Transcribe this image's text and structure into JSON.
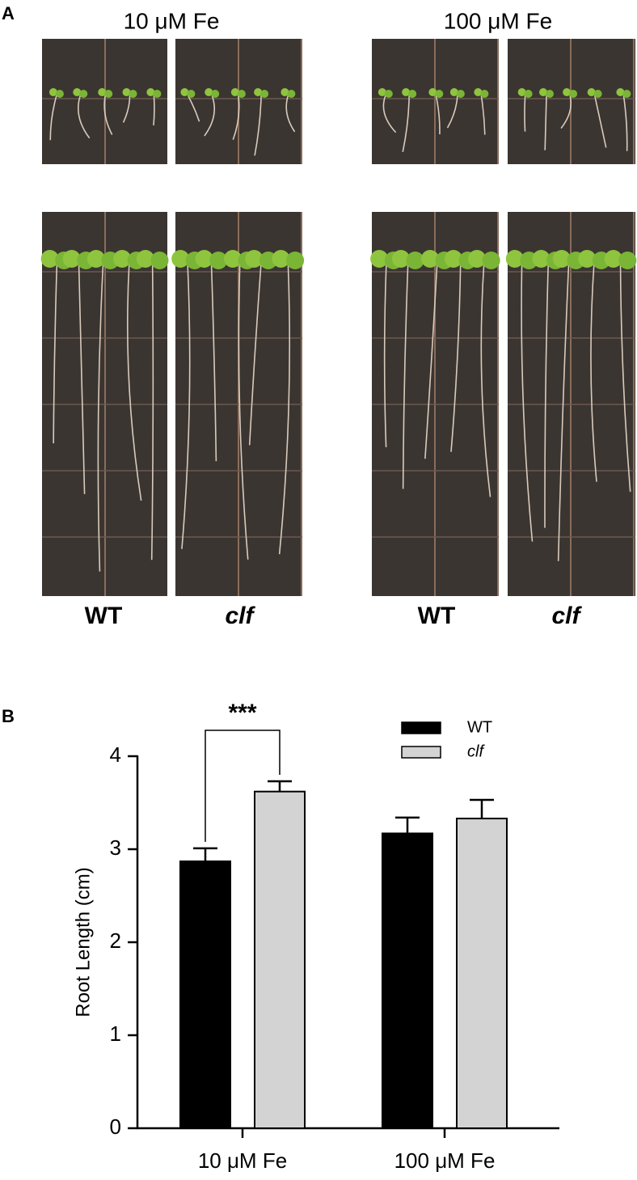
{
  "panel_a": {
    "label": "A",
    "conditions": [
      "10 μM Fe",
      "100 μM Fe"
    ],
    "genotypes": [
      "WT",
      "clf",
      "WT",
      "clf"
    ]
  },
  "chart_data": {
    "type": "bar",
    "panel_label": "B",
    "ylabel": "Root Length (cm)",
    "categories": [
      "10 μM Fe",
      "100 μM Fe"
    ],
    "series": [
      {
        "name": "WT",
        "color": "#000000",
        "values": [
          2.87,
          3.17
        ],
        "errors": [
          0.14,
          0.17
        ]
      },
      {
        "name": "clf",
        "color": "#d3d3d3",
        "values": [
          3.62,
          3.33
        ],
        "errors": [
          0.11,
          0.2
        ]
      }
    ],
    "ylim": [
      0,
      4
    ],
    "yticks": [
      0,
      1,
      2,
      3,
      4
    ],
    "significance": "***"
  }
}
